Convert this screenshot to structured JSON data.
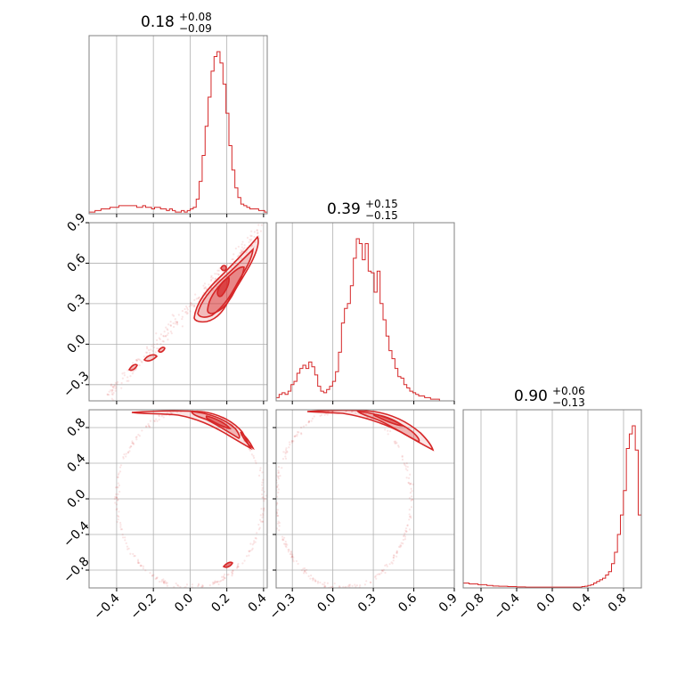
{
  "chart_data": {
    "type": "corner",
    "color": "#d62728",
    "titles": [
      {
        "main": "0.18",
        "plus": "+0.08",
        "minus": "−0.09"
      },
      {
        "main": "0.39",
        "plus": "+0.15",
        "minus": "−0.15"
      },
      {
        "main": "0.90",
        "plus": "+0.06",
        "minus": "−0.13"
      }
    ],
    "ranges": [
      [
        -0.55,
        0.42
      ],
      [
        -0.42,
        0.9
      ],
      [
        -1.0,
        1.0
      ]
    ],
    "ticks": {
      "p0": [
        {
          "v": -0.4,
          "t": "−0.4"
        },
        {
          "v": -0.2,
          "t": "−0.2"
        },
        {
          "v": 0.0,
          "t": "0.0"
        },
        {
          "v": 0.2,
          "t": "0.2"
        },
        {
          "v": 0.4,
          "t": "0.4"
        }
      ],
      "p1": [
        {
          "v": -0.3,
          "t": "−0.3"
        },
        {
          "v": 0.0,
          "t": "0.0"
        },
        {
          "v": 0.3,
          "t": "0.3"
        },
        {
          "v": 0.6,
          "t": "0.6"
        },
        {
          "v": 0.9,
          "t": "0.9"
        }
      ],
      "p2": [
        {
          "v": -0.8,
          "t": "−0.8"
        },
        {
          "v": -0.4,
          "t": "−0.4"
        },
        {
          "v": 0.0,
          "t": "0.0"
        },
        {
          "v": 0.4,
          "t": "0.4"
        },
        {
          "v": 0.8,
          "t": "0.8"
        }
      ]
    },
    "hist0": {
      "edges_start": -0.55,
      "bin_width": 0.0162,
      "counts": [
        0.01,
        0.01,
        0.02,
        0.02,
        0.03,
        0.03,
        0.03,
        0.04,
        0.04,
        0.04,
        0.05,
        0.05,
        0.05,
        0.05,
        0.05,
        0.05,
        0.04,
        0.04,
        0.05,
        0.04,
        0.04,
        0.03,
        0.04,
        0.04,
        0.03,
        0.03,
        0.02,
        0.03,
        0.02,
        0.01,
        0.01,
        0.02,
        0.01,
        0.02,
        0.03,
        0.04,
        0.09,
        0.2,
        0.36,
        0.54,
        0.72,
        0.88,
        0.97,
        1.0,
        0.93,
        0.8,
        0.62,
        0.42,
        0.27,
        0.16,
        0.1,
        0.06,
        0.05,
        0.04,
        0.03,
        0.03,
        0.03,
        0.02,
        0.02,
        0.01
      ]
    },
    "hist1": {
      "edges_start": -0.42,
      "bin_width": 0.022,
      "counts": [
        0.02,
        0.04,
        0.05,
        0.04,
        0.06,
        0.1,
        0.12,
        0.17,
        0.2,
        0.22,
        0.2,
        0.24,
        0.21,
        0.16,
        0.09,
        0.06,
        0.05,
        0.07,
        0.09,
        0.12,
        0.18,
        0.3,
        0.48,
        0.57,
        0.6,
        0.71,
        0.88,
        1.0,
        0.97,
        0.87,
        0.97,
        0.8,
        0.79,
        0.67,
        0.8,
        0.6,
        0.5,
        0.4,
        0.31,
        0.26,
        0.2,
        0.15,
        0.14,
        0.1,
        0.08,
        0.06,
        0.05,
        0.04,
        0.03,
        0.03,
        0.02,
        0.02,
        0.01,
        0.01,
        0.01,
        0.0,
        0.0,
        0.0,
        0.0,
        0.0
      ]
    },
    "hist2": {
      "edges_start": -1.0,
      "bin_width": 0.0333,
      "counts": [
        0.03,
        0.03,
        0.025,
        0.025,
        0.025,
        0.02,
        0.02,
        0.02,
        0.015,
        0.015,
        0.012,
        0.012,
        0.01,
        0.01,
        0.01,
        0.008,
        0.008,
        0.008,
        0.006,
        0.006,
        0.006,
        0.005,
        0.005,
        0.005,
        0.005,
        0.005,
        0.005,
        0.005,
        0.005,
        0.005,
        0.005,
        0.005,
        0.005,
        0.005,
        0.005,
        0.005,
        0.005,
        0.005,
        0.005,
        0.005,
        0.008,
        0.01,
        0.015,
        0.02,
        0.03,
        0.04,
        0.05,
        0.06,
        0.08,
        0.1,
        0.15,
        0.22,
        0.33,
        0.45,
        0.6,
        0.86,
        0.95,
        1.0,
        0.85,
        0.45
      ]
    }
  }
}
